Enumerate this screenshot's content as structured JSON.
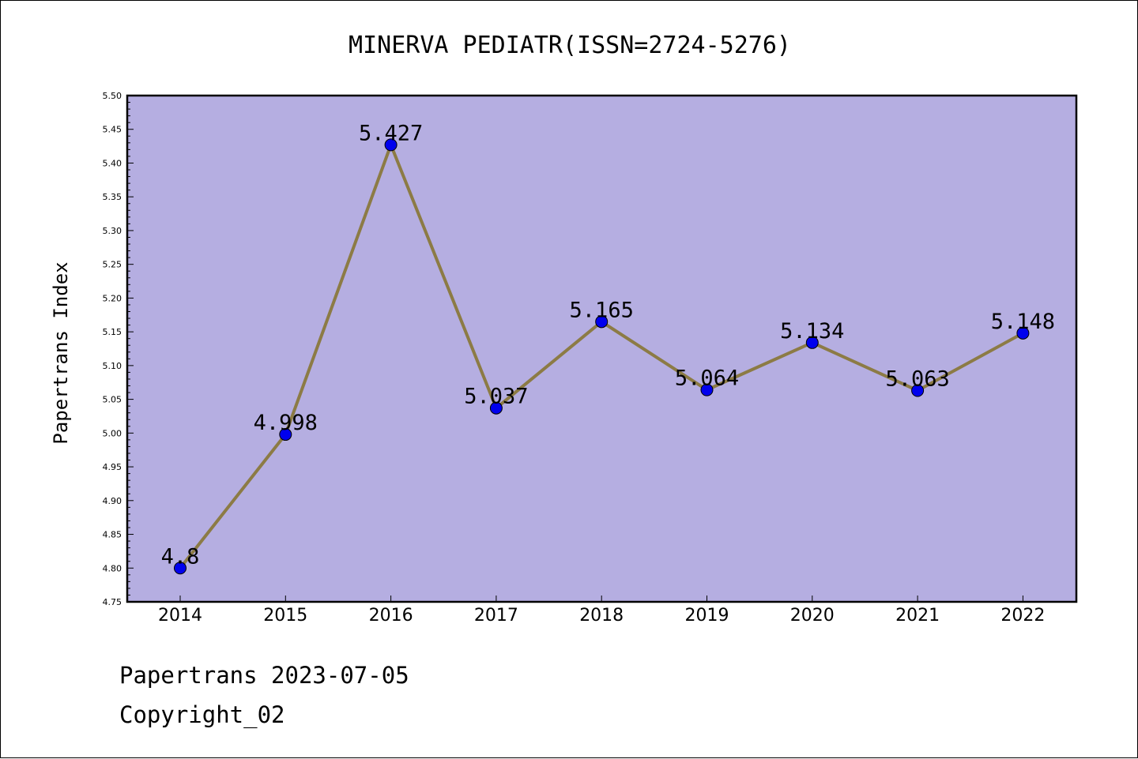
{
  "chart_data": {
    "type": "line",
    "title": "MINERVA PEDIATR(ISSN=2724-5276)",
    "xlabel": "",
    "ylabel": "Papertrans Index",
    "categories": [
      "2014",
      "2015",
      "2016",
      "2017",
      "2018",
      "2019",
      "2020",
      "2021",
      "2022"
    ],
    "values": [
      4.8,
      4.998,
      5.427,
      5.037,
      5.165,
      5.064,
      5.134,
      5.063,
      5.148
    ],
    "value_labels": [
      "4.8",
      "4.998",
      "5.427",
      "5.037",
      "5.165",
      "5.064",
      "5.134",
      "5.063",
      "5.148"
    ],
    "ylim": [
      4.75,
      5.5
    ],
    "yticks": [
      "4.75",
      "4.80",
      "4.85",
      "4.90",
      "4.95",
      "5.00",
      "5.05",
      "5.10",
      "5.15",
      "5.20",
      "5.25",
      "5.30",
      "5.35",
      "5.40",
      "5.45",
      "5.50"
    ],
    "grid": false,
    "legend": "none",
    "colors": {
      "plot_background": "#b5aee1",
      "line": "#8c7b45",
      "marker": "#0000ee"
    }
  },
  "footer": {
    "line1": "Papertrans 2023-07-05",
    "line2": "Copyright_02"
  }
}
